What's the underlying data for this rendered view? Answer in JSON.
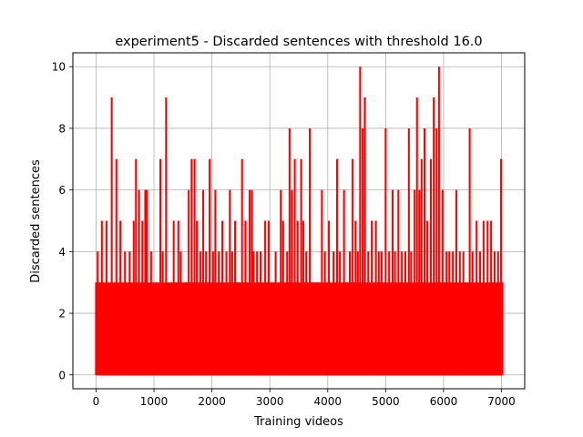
{
  "chart_data": {
    "type": "line",
    "title": "experiment5 - Discarded sentences with threshold 16.0",
    "xlabel": "Training videos",
    "ylabel": "Discarded sentences",
    "xlim": [
      -400,
      7400
    ],
    "ylim": [
      -0.45,
      10.45
    ],
    "xticks": [
      0,
      1000,
      2000,
      3000,
      4000,
      5000,
      6000,
      7000
    ],
    "xtick_labels": [
      "0",
      "1000",
      "2000",
      "3000",
      "4000",
      "5000",
      "6000",
      "7000"
    ],
    "yticks": [
      0,
      2,
      4,
      6,
      8,
      10
    ],
    "ytick_labels": [
      "0",
      "2",
      "4",
      "6",
      "8",
      "10"
    ],
    "grid": true,
    "x_range": [
      0,
      7010
    ],
    "baseline_value": 0,
    "series": [
      {
        "color": "#ff0000",
        "peaks": [
          {
            "x": 0,
            "y": 2
          },
          {
            "x": 30,
            "y": 4
          },
          {
            "x": 100,
            "y": 5
          },
          {
            "x": 180,
            "y": 5
          },
          {
            "x": 270,
            "y": 9
          },
          {
            "x": 350,
            "y": 7
          },
          {
            "x": 420,
            "y": 5
          },
          {
            "x": 500,
            "y": 4
          },
          {
            "x": 580,
            "y": 4
          },
          {
            "x": 650,
            "y": 5
          },
          {
            "x": 690,
            "y": 7
          },
          {
            "x": 740,
            "y": 6
          },
          {
            "x": 800,
            "y": 5
          },
          {
            "x": 850,
            "y": 6
          },
          {
            "x": 880,
            "y": 6
          },
          {
            "x": 950,
            "y": 4
          },
          {
            "x": 1050,
            "y": 3
          },
          {
            "x": 1110,
            "y": 7
          },
          {
            "x": 1150,
            "y": 4
          },
          {
            "x": 1210,
            "y": 9
          },
          {
            "x": 1280,
            "y": 3
          },
          {
            "x": 1340,
            "y": 5
          },
          {
            "x": 1420,
            "y": 5
          },
          {
            "x": 1460,
            "y": 4
          },
          {
            "x": 1550,
            "y": 3
          },
          {
            "x": 1600,
            "y": 6
          },
          {
            "x": 1650,
            "y": 7
          },
          {
            "x": 1700,
            "y": 7
          },
          {
            "x": 1740,
            "y": 5
          },
          {
            "x": 1800,
            "y": 4
          },
          {
            "x": 1850,
            "y": 6
          },
          {
            "x": 1900,
            "y": 4
          },
          {
            "x": 1960,
            "y": 7
          },
          {
            "x": 2020,
            "y": 4
          },
          {
            "x": 2060,
            "y": 6
          },
          {
            "x": 2120,
            "y": 4
          },
          {
            "x": 2180,
            "y": 5
          },
          {
            "x": 2250,
            "y": 4
          },
          {
            "x": 2310,
            "y": 6
          },
          {
            "x": 2350,
            "y": 4
          },
          {
            "x": 2400,
            "y": 5
          },
          {
            "x": 2470,
            "y": 3
          },
          {
            "x": 2520,
            "y": 7
          },
          {
            "x": 2580,
            "y": 5
          },
          {
            "x": 2650,
            "y": 6
          },
          {
            "x": 2690,
            "y": 6
          },
          {
            "x": 2720,
            "y": 4
          },
          {
            "x": 2780,
            "y": 4
          },
          {
            "x": 2840,
            "y": 4
          },
          {
            "x": 2920,
            "y": 5
          },
          {
            "x": 2980,
            "y": 5
          },
          {
            "x": 3050,
            "y": 3
          },
          {
            "x": 3100,
            "y": 4
          },
          {
            "x": 3190,
            "y": 6
          },
          {
            "x": 3230,
            "y": 5
          },
          {
            "x": 3300,
            "y": 4
          },
          {
            "x": 3340,
            "y": 8
          },
          {
            "x": 3380,
            "y": 6
          },
          {
            "x": 3430,
            "y": 7
          },
          {
            "x": 3480,
            "y": 5
          },
          {
            "x": 3540,
            "y": 7
          },
          {
            "x": 3580,
            "y": 5
          },
          {
            "x": 3630,
            "y": 4
          },
          {
            "x": 3690,
            "y": 8
          },
          {
            "x": 3740,
            "y": 3
          },
          {
            "x": 3800,
            "y": 3
          },
          {
            "x": 3850,
            "y": 3
          },
          {
            "x": 3900,
            "y": 6
          },
          {
            "x": 3950,
            "y": 4
          },
          {
            "x": 4020,
            "y": 5
          },
          {
            "x": 4100,
            "y": 4
          },
          {
            "x": 4160,
            "y": 7
          },
          {
            "x": 4210,
            "y": 4
          },
          {
            "x": 4280,
            "y": 6
          },
          {
            "x": 4330,
            "y": 3
          },
          {
            "x": 4380,
            "y": 4
          },
          {
            "x": 4430,
            "y": 7
          },
          {
            "x": 4480,
            "y": 5
          },
          {
            "x": 4520,
            "y": 4
          },
          {
            "x": 4560,
            "y": 10
          },
          {
            "x": 4600,
            "y": 8
          },
          {
            "x": 4640,
            "y": 9
          },
          {
            "x": 4700,
            "y": 4
          },
          {
            "x": 4760,
            "y": 5
          },
          {
            "x": 4830,
            "y": 5
          },
          {
            "x": 4880,
            "y": 4
          },
          {
            "x": 4930,
            "y": 4
          },
          {
            "x": 5000,
            "y": 8
          },
          {
            "x": 5060,
            "y": 4
          },
          {
            "x": 5120,
            "y": 6
          },
          {
            "x": 5160,
            "y": 4
          },
          {
            "x": 5220,
            "y": 6
          },
          {
            "x": 5280,
            "y": 4
          },
          {
            "x": 5340,
            "y": 4
          },
          {
            "x": 5400,
            "y": 8
          },
          {
            "x": 5440,
            "y": 4
          },
          {
            "x": 5500,
            "y": 6
          },
          {
            "x": 5540,
            "y": 9
          },
          {
            "x": 5580,
            "y": 6
          },
          {
            "x": 5620,
            "y": 7
          },
          {
            "x": 5670,
            "y": 8
          },
          {
            "x": 5720,
            "y": 5
          },
          {
            "x": 5780,
            "y": 7
          },
          {
            "x": 5830,
            "y": 9
          },
          {
            "x": 5880,
            "y": 8
          },
          {
            "x": 5920,
            "y": 10
          },
          {
            "x": 5980,
            "y": 6
          },
          {
            "x": 6050,
            "y": 4
          },
          {
            "x": 6100,
            "y": 4
          },
          {
            "x": 6160,
            "y": 4
          },
          {
            "x": 6220,
            "y": 6
          },
          {
            "x": 6280,
            "y": 4
          },
          {
            "x": 6340,
            "y": 4
          },
          {
            "x": 6400,
            "y": 3
          },
          {
            "x": 6450,
            "y": 8
          },
          {
            "x": 6500,
            "y": 4
          },
          {
            "x": 6570,
            "y": 5
          },
          {
            "x": 6630,
            "y": 4
          },
          {
            "x": 6690,
            "y": 5
          },
          {
            "x": 6760,
            "y": 5
          },
          {
            "x": 6820,
            "y": 5
          },
          {
            "x": 6880,
            "y": 4
          },
          {
            "x": 6940,
            "y": 4
          },
          {
            "x": 6990,
            "y": 7
          },
          {
            "x": 7010,
            "y": 0
          }
        ]
      }
    ]
  }
}
